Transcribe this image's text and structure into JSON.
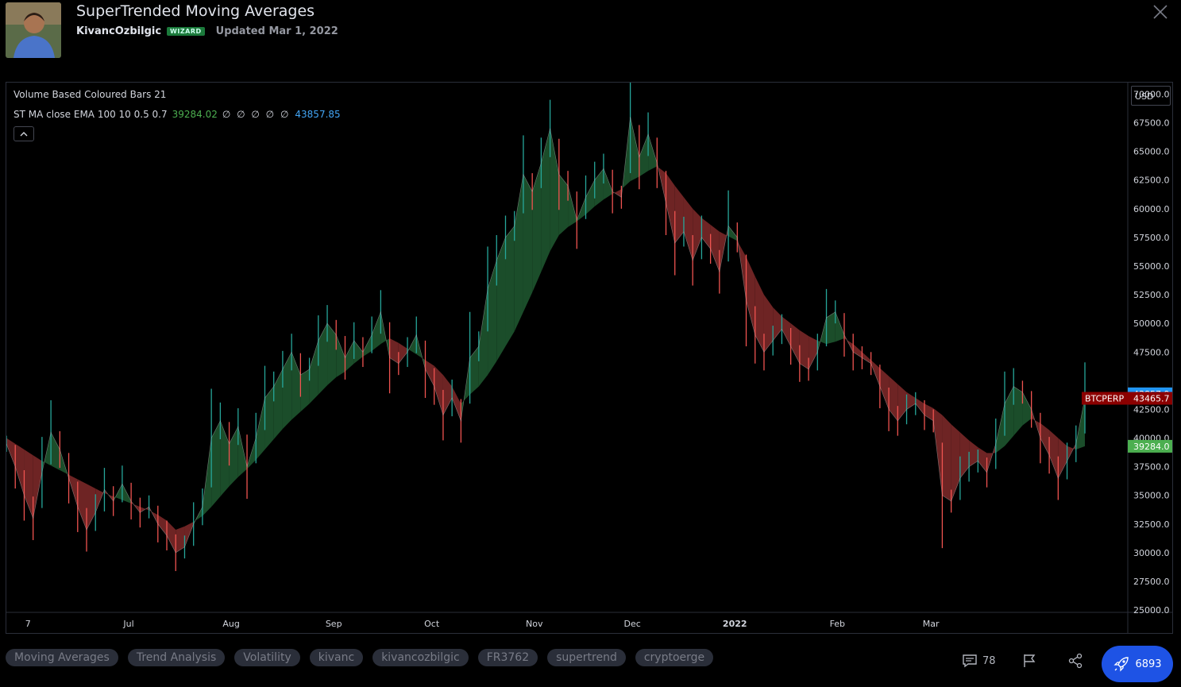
{
  "header": {
    "title": "SuperTrended Moving Averages",
    "author": "KivancOzbilgic",
    "badge": "WIZARD",
    "updated": "Updated Mar 1, 2022"
  },
  "legend": {
    "line1": "Volume Based Coloured Bars 21",
    "line2_label": "ST MA close EMA 100 10 0.5 0.7",
    "line2_value1": "39284.02",
    "line2_zeros": "∅ ∅ ∅ ∅ ∅",
    "line2_value2": "43857.85"
  },
  "currency": "USD",
  "colors": {
    "background": "#000000",
    "up_fill": "#1b4d2a",
    "down_fill": "#6e2424",
    "up_candle": "#26a69a",
    "down_candle": "#ef5350",
    "price_blue": "#2196f3",
    "price_green": "#4caf50",
    "price_red": "#8b0000"
  },
  "chart_data": {
    "type": "line",
    "symbol": "BTCPERP",
    "x_ticks": [
      "7",
      "Jul",
      "Aug",
      "Sep",
      "Oct",
      "Nov",
      "Dec",
      "2022",
      "Feb",
      "Mar"
    ],
    "y_ticks": [
      "70000.0",
      "67500.0",
      "65000.0",
      "62500.0",
      "60000.0",
      "57500.0",
      "55000.0",
      "52500.0",
      "50000.0",
      "47500.0",
      "42500.0",
      "40000.0",
      "37500.0",
      "35000.0",
      "32500.0",
      "30000.0",
      "27500.0",
      "25000.0"
    ],
    "ylim": [
      24800,
      71000
    ],
    "price_labels": [
      {
        "label": "43857.9",
        "value": 43857.9,
        "color": "#2196f3"
      },
      {
        "label": "43465.7",
        "value": 43465.7,
        "color": "#8b0000",
        "symbol": "BTCPERP"
      },
      {
        "label": "39284.0",
        "value": 39284.0,
        "color": "#4caf50"
      }
    ],
    "series": [
      {
        "values": [
          39500,
          37500,
          35000,
          33000,
          37000,
          40500,
          39000,
          36500,
          34000,
          32000,
          33500,
          35500,
          34500,
          36000,
          34500,
          33500,
          34000,
          32500,
          31500,
          30000,
          30500,
          32500,
          34000,
          40000,
          41500,
          39500,
          41000,
          37500,
          40000,
          43500,
          44500,
          46000,
          47500,
          45500,
          46000,
          48500,
          50000,
          49000,
          47000,
          48500,
          47500,
          49000,
          51000,
          47000,
          46500,
          47500,
          49000,
          46000,
          44500,
          42000,
          43500,
          41500,
          47000,
          48000,
          53000,
          55500,
          57500,
          58500,
          63000,
          61500,
          64000,
          67000,
          63000,
          62000,
          59000,
          61000,
          62500,
          63500,
          61500,
          61000,
          68000,
          64500,
          66500,
          64000,
          60500,
          57000,
          58000,
          55500,
          57500,
          56500,
          54500,
          58500,
          57500,
          52000,
          49000,
          47500,
          48500,
          49500,
          48000,
          46500,
          46000,
          47500,
          50500,
          51000,
          49000,
          47500,
          47000,
          46500,
          44500,
          42500,
          41500,
          42500,
          43000,
          42000,
          41500,
          35000,
          34500,
          36500,
          37500,
          38000,
          37000,
          39500,
          43000,
          44500,
          44000,
          42500,
          40000,
          38500,
          36500,
          38000,
          39500,
          43500
        ],
        "ma": [
          40000,
          39500,
          39000,
          38500,
          38000,
          37600,
          37200,
          36800,
          36400,
          36000,
          35600,
          35200,
          34900,
          34600,
          34300,
          34000,
          33700,
          33300,
          32800,
          32000,
          32300,
          32700,
          33200,
          34000,
          34900,
          35800,
          36600,
          37300,
          38100,
          39000,
          39900,
          40800,
          41600,
          42300,
          43000,
          43800,
          44600,
          45300,
          45800,
          46500,
          47100,
          47600,
          48200,
          48700,
          48300,
          47800,
          47300,
          46800,
          46300,
          45500,
          44500,
          43000,
          43800,
          44500,
          45500,
          46700,
          48000,
          49300,
          51000,
          52700,
          54500,
          56300,
          57700,
          58400,
          58900,
          59500,
          60200,
          60800,
          61300,
          61700,
          62400,
          62800,
          63300,
          63700,
          63100,
          62000,
          61000,
          60000,
          59200,
          58600,
          58000,
          57600,
          57200,
          55800,
          54100,
          52500,
          51400,
          50600,
          50000,
          49400,
          48900,
          48500,
          48200,
          48400,
          48700,
          48200,
          47500,
          46800,
          46100,
          45400,
          44700,
          44000,
          43500,
          43000,
          42600,
          42000,
          41200,
          40500,
          39800,
          39200,
          38700,
          38700,
          39300,
          40200,
          41100,
          41700,
          41300,
          40700,
          40000,
          39300,
          39000,
          39284
        ]
      }
    ]
  },
  "tags": [
    "Moving Averages",
    "Trend Analysis",
    "Volatility",
    "kivanc",
    "kivancozbilgic",
    "FR3762",
    "supertrend",
    "cryptoerge"
  ],
  "actions": {
    "comments_count": "78",
    "boost_count": "6893"
  }
}
